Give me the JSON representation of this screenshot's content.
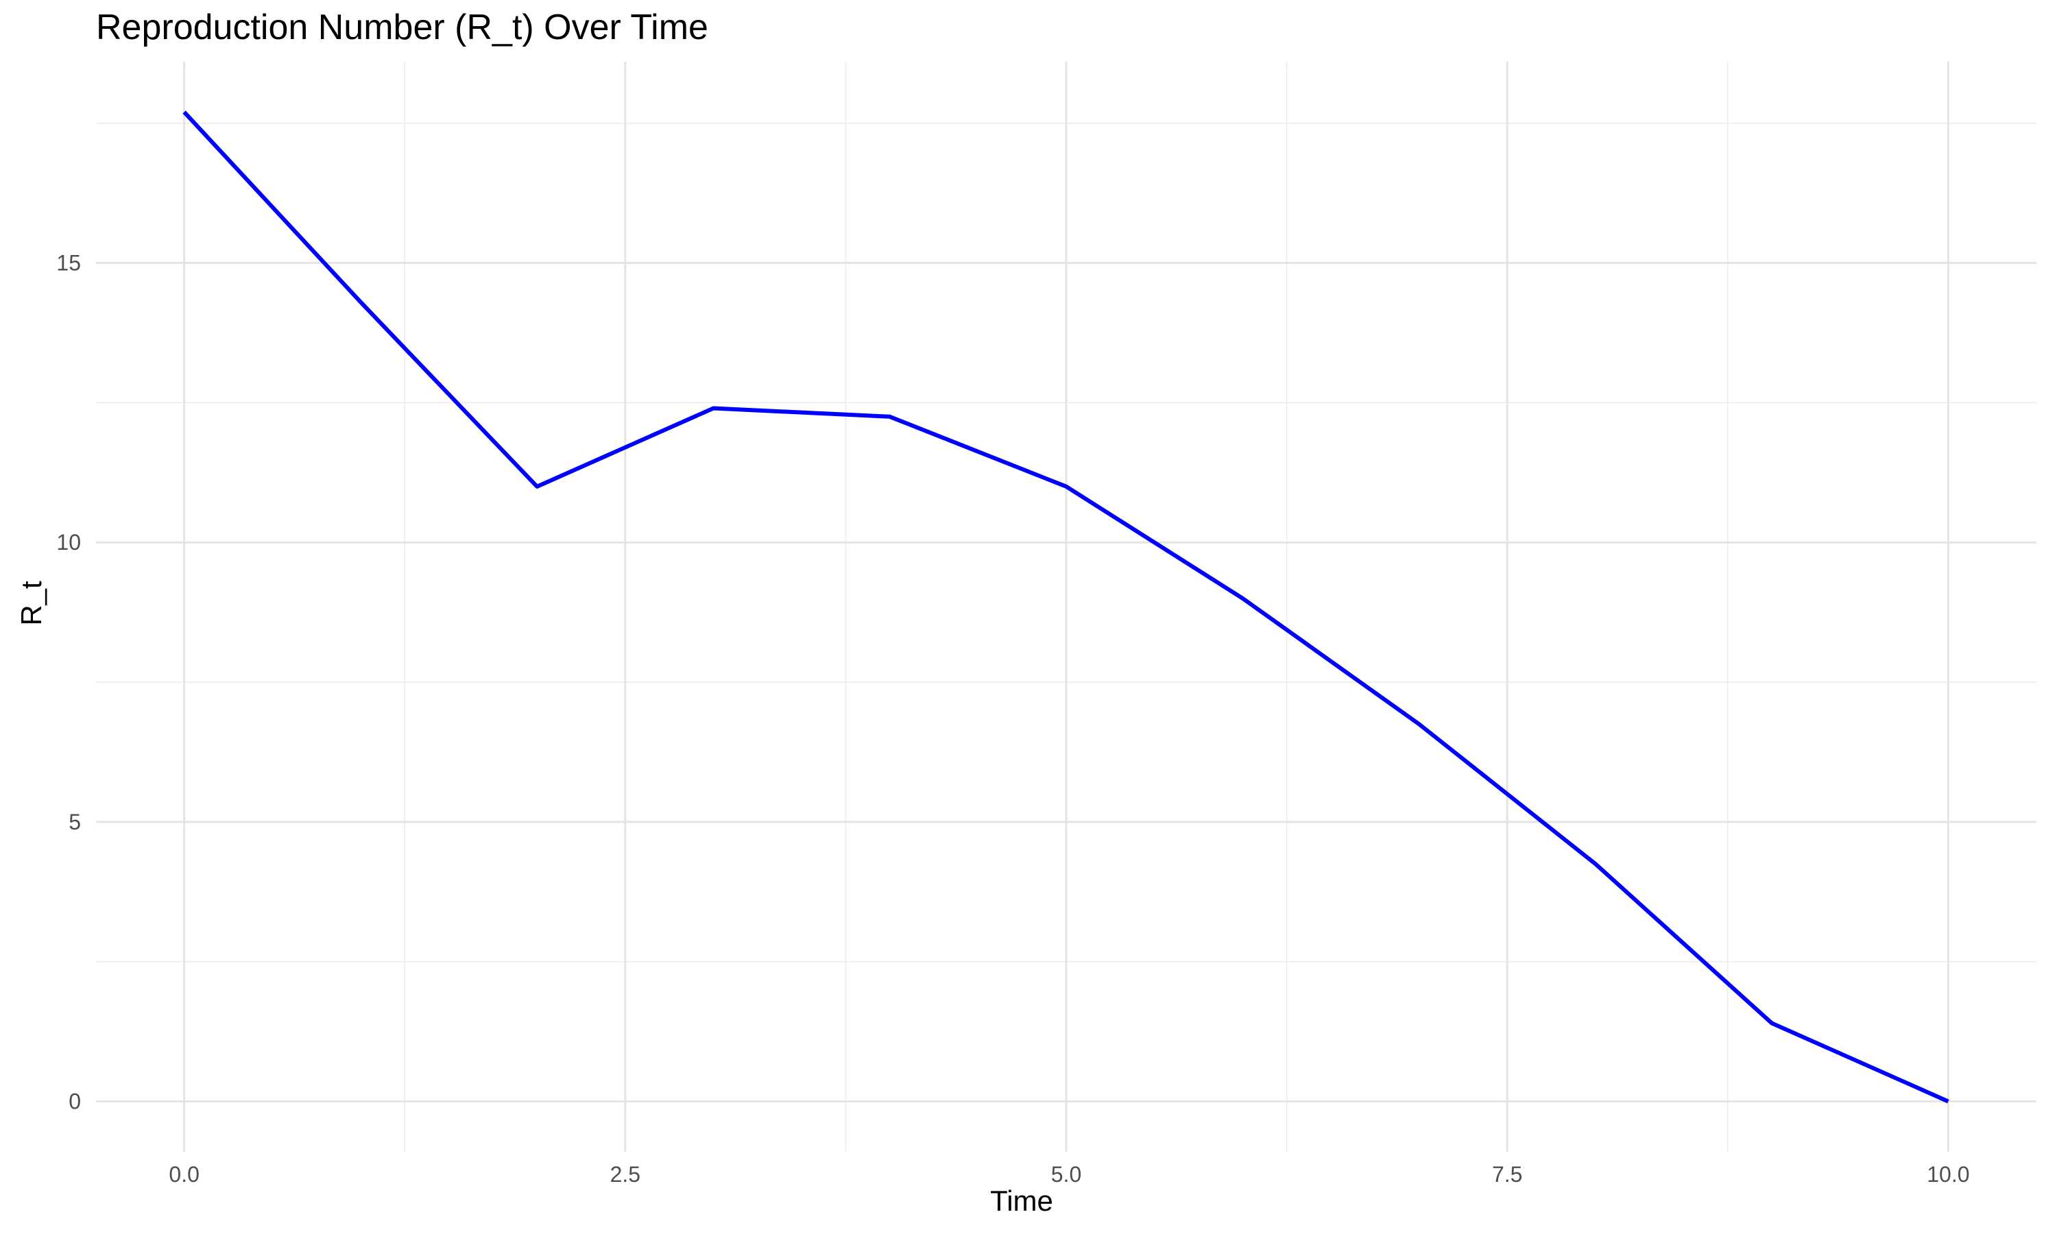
{
  "chart_data": {
    "type": "line",
    "title": "Reproduction Number (R_t) Over Time",
    "xlabel": "Time",
    "ylabel": "R_t",
    "xlim": [
      -0.5,
      10.5
    ],
    "ylim": [
      -0.9,
      18.6
    ],
    "x_ticks": [
      0.0,
      2.5,
      5.0,
      7.5,
      10.0
    ],
    "x_tick_labels": [
      "0.0",
      "2.5",
      "5.0",
      "7.5",
      "10.0"
    ],
    "y_ticks": [
      0,
      5,
      10,
      15
    ],
    "y_tick_labels": [
      "0",
      "5",
      "10",
      "15"
    ],
    "grid": true,
    "series": [
      {
        "color": "#0000ff",
        "x": [
          0,
          1,
          2,
          3,
          4,
          5,
          6,
          7,
          8,
          9,
          10
        ],
        "y": [
          17.7,
          14.3,
          11.0,
          12.4,
          12.25,
          11.0,
          9.0,
          6.75,
          4.25,
          1.4,
          0.0
        ]
      }
    ]
  }
}
